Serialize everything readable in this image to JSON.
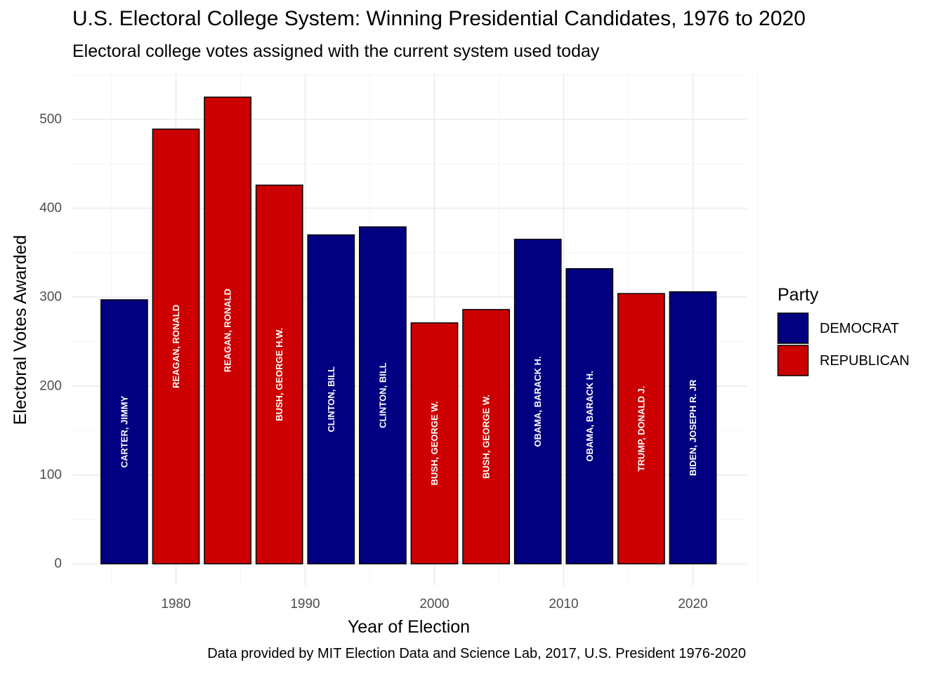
{
  "chart_data": {
    "type": "bar",
    "title": "U.S. Electoral College System: Winning Presidential Candidates, 1976 to 2020",
    "subtitle": "Electoral college votes assigned with the current system used today",
    "caption": "Data provided by MIT Election Data and Science Lab, 2017, U.S. President 1976-2020",
    "xlabel": "Year of Election",
    "ylabel": "Electoral Votes Awarded",
    "xlim": [
      1973,
      2024
    ],
    "ylim": [
      0,
      550
    ],
    "x_ticks": [
      1980,
      1990,
      2000,
      2010,
      2020
    ],
    "y_ticks": [
      0,
      100,
      200,
      300,
      400,
      500
    ],
    "grid": true,
    "legend": {
      "title": "Party",
      "position": "right",
      "entries": [
        {
          "label": "DEMOCRAT",
          "color": "#000080"
        },
        {
          "label": "REPUBLICAN",
          "color": "#CC0000"
        }
      ]
    },
    "bars": [
      {
        "year": 1976,
        "votes": 297,
        "candidate": "CARTER, JIMMY",
        "party": "DEMOCRAT"
      },
      {
        "year": 1980,
        "votes": 489,
        "candidate": "REAGAN, RONALD",
        "party": "REPUBLICAN"
      },
      {
        "year": 1984,
        "votes": 525,
        "candidate": "REAGAN, RONALD",
        "party": "REPUBLICAN"
      },
      {
        "year": 1988,
        "votes": 426,
        "candidate": "BUSH, GEORGE H.W.",
        "party": "REPUBLICAN"
      },
      {
        "year": 1992,
        "votes": 370,
        "candidate": "CLINTON, BILL",
        "party": "DEMOCRAT"
      },
      {
        "year": 1996,
        "votes": 379,
        "candidate": "CLINTON, BILL",
        "party": "DEMOCRAT"
      },
      {
        "year": 2000,
        "votes": 271,
        "candidate": "BUSH, GEORGE W.",
        "party": "REPUBLICAN"
      },
      {
        "year": 2004,
        "votes": 286,
        "candidate": "BUSH, GEORGE W.",
        "party": "REPUBLICAN"
      },
      {
        "year": 2008,
        "votes": 365,
        "candidate": "OBAMA, BARACK H.",
        "party": "DEMOCRAT"
      },
      {
        "year": 2012,
        "votes": 332,
        "candidate": "OBAMA, BARACK H.",
        "party": "DEMOCRAT"
      },
      {
        "year": 2016,
        "votes": 304,
        "candidate": "TRUMP, DONALD J.",
        "party": "REPUBLICAN"
      },
      {
        "year": 2020,
        "votes": 306,
        "candidate": "BIDEN, JOSEPH R. JR",
        "party": "DEMOCRAT"
      }
    ]
  }
}
